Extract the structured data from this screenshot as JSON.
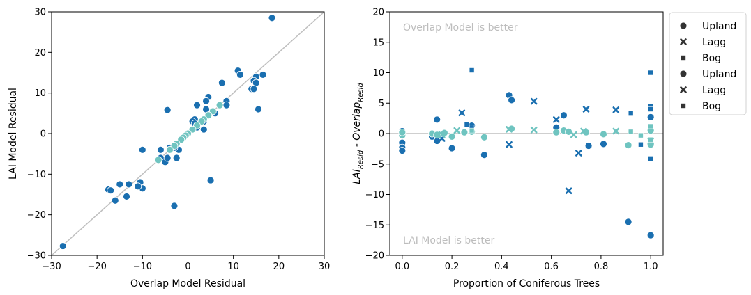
{
  "colors": {
    "dark": "#1a6fb0",
    "light": "#6fc4c0",
    "diag": "#bfbfbf",
    "annot": "#bdbdbd"
  },
  "chart_data": [
    {
      "type": "scatter",
      "xlabel": "Overlap Model Residual",
      "ylabel": "LAI Model Residual",
      "xlim": [
        -30,
        30
      ],
      "ylim": [
        -30,
        30
      ],
      "xticks": [
        -30,
        -20,
        -10,
        0,
        10,
        20,
        30
      ],
      "yticks": [
        -30,
        -20,
        -10,
        0,
        10,
        20,
        30
      ],
      "xtick_labels": [
        "−30",
        "−20",
        "−10",
        "0",
        "10",
        "20",
        "30"
      ],
      "ytick_labels": [
        "−30",
        "−20",
        "−10",
        "0",
        "10",
        "20",
        "30"
      ],
      "reference_line": "y = x",
      "series": [
        {
          "color": "dark",
          "x": [
            18.5,
            16.5,
            15,
            11,
            11.5,
            14.5,
            14,
            15,
            14.5,
            15.5,
            8.5,
            8.5,
            7.5,
            4.5,
            4,
            4,
            2,
            1.5,
            1,
            1.5,
            2,
            2,
            3.5,
            6,
            3.5,
            -4.5,
            -6,
            -6,
            -4,
            -2.5,
            -2,
            -5,
            -4.5,
            -3,
            -10,
            -10.5,
            -10,
            -11,
            -13,
            -13.5,
            -15,
            -16,
            -17.5,
            -17,
            5,
            -3,
            -27.5
          ],
          "y": [
            28.5,
            14.5,
            14,
            15.5,
            14.5,
            13,
            11,
            12.5,
            11,
            6,
            8,
            7,
            12.5,
            9,
            8,
            6,
            7,
            3.5,
            3,
            2.5,
            2,
            1.5,
            1,
            5,
            3,
            5.8,
            -4,
            -6,
            -3.5,
            -6,
            -4,
            -7,
            -6,
            -3.5,
            -4,
            -12,
            -13.5,
            -13,
            -12.5,
            -15.5,
            -12.5,
            -16.5,
            -13.8,
            -14,
            -11.5,
            -17.8,
            -27.7
          ]
        },
        {
          "color": "light",
          "x": [
            7,
            5.5,
            4.5,
            3.5,
            3,
            2,
            1,
            0,
            -0.5,
            -1,
            -1.5,
            -2.5,
            -3,
            -4,
            -6.5
          ],
          "y": [
            7,
            5.5,
            4.5,
            3.5,
            3,
            2,
            1,
            0,
            -0.5,
            -1,
            -1.5,
            -2.5,
            -3,
            -4,
            -6.5
          ]
        }
      ]
    },
    {
      "type": "scatter",
      "xlabel": "Proportion of Coniferous Trees",
      "ylabel_main": "LAI",
      "ylabel_sub": "Resid",
      "ylabel_mid": " - Overlap",
      "ylabel_sub2": "Resid",
      "xlim": [
        -0.05,
        1.05
      ],
      "ylim": [
        -20,
        20
      ],
      "xticks": [
        0.0,
        0.2,
        0.4,
        0.6,
        0.8,
        1.0
      ],
      "yticks": [
        -20,
        -15,
        -10,
        -5,
        0,
        5,
        10,
        15,
        20
      ],
      "xtick_labels": [
        "0.0",
        "0.2",
        "0.4",
        "0.6",
        "0.8",
        "1.0"
      ],
      "ytick_labels": [
        "−20",
        "−15",
        "−10",
        "−5",
        "0",
        "5",
        "10",
        "15",
        "20"
      ],
      "reference_line": "y = 0",
      "annotations": [
        "Overlap Model is better",
        "LAI Model is better"
      ],
      "legend": {
        "placement": "outside upper right",
        "entries": [
          {
            "label": "Upland",
            "marker": "circle"
          },
          {
            "label": "Lagg",
            "marker": "x"
          },
          {
            "label": "Bog",
            "marker": "square"
          },
          {
            "label": "Upland",
            "marker": "circle"
          },
          {
            "label": "Lagg",
            "marker": "x"
          },
          {
            "label": "Bog",
            "marker": "square"
          }
        ]
      },
      "series": [
        {
          "marker": "circle",
          "color": "dark",
          "x": [
            0.0,
            0.0,
            0.0,
            0.0,
            0.14,
            0.14,
            0.2,
            0.28,
            0.33,
            0.43,
            0.44,
            0.62,
            0.65,
            0.75,
            0.81,
            0.91,
            1.0,
            1.0,
            1.0,
            0.0,
            0.12
          ],
          "y": [
            0.4,
            -1.5,
            -2.3,
            -2.8,
            2.3,
            -1.2,
            -2.4,
            1.3,
            -3.5,
            6.3,
            5.5,
            1.0,
            3.0,
            -2.0,
            -1.7,
            -14.5,
            -16.7,
            2.7,
            0.5,
            0.0,
            -0.5
          ]
        },
        {
          "marker": "x",
          "color": "dark",
          "x": [
            0.24,
            0.43,
            0.53,
            0.62,
            0.67,
            0.71,
            0.74,
            0.86,
            0.16
          ],
          "y": [
            3.4,
            -1.8,
            5.3,
            2.3,
            -9.4,
            -3.2,
            4.0,
            3.9,
            -0.8
          ]
        },
        {
          "marker": "square",
          "color": "dark",
          "x": [
            0.26,
            0.28,
            0.28,
            0.92,
            0.96,
            1.0,
            1.0,
            1.0,
            1.0
          ],
          "y": [
            1.5,
            1.0,
            10.4,
            3.3,
            -1.8,
            10.0,
            4.5,
            4.0,
            -4.1
          ]
        },
        {
          "marker": "circle",
          "color": "light",
          "x": [
            0.0,
            0.0,
            0.12,
            0.14,
            0.17,
            0.2,
            0.25,
            0.28,
            0.33,
            0.44,
            0.62,
            0.65,
            0.67,
            0.74,
            0.81,
            0.91,
            1.0,
            1.0
          ],
          "y": [
            -0.3,
            0.2,
            0.0,
            -0.2,
            0.1,
            -0.5,
            0.2,
            0.3,
            -0.6,
            0.8,
            0.2,
            0.5,
            0.3,
            0.2,
            -0.1,
            -1.9,
            -1.8,
            0.5
          ]
        },
        {
          "marker": "x",
          "color": "light",
          "x": [
            0.16,
            0.22,
            0.53,
            0.69,
            0.73,
            0.86,
            0.43,
            1.0
          ],
          "y": [
            -0.2,
            0.5,
            0.6,
            -0.2,
            0.4,
            0.4,
            0.7,
            -1.2
          ]
        },
        {
          "marker": "square",
          "color": "light",
          "x": [
            0.28,
            0.92,
            0.96,
            1.0,
            1.0
          ],
          "y": [
            0.5,
            0.3,
            -0.3,
            1.2,
            -1.0
          ]
        }
      ]
    }
  ]
}
